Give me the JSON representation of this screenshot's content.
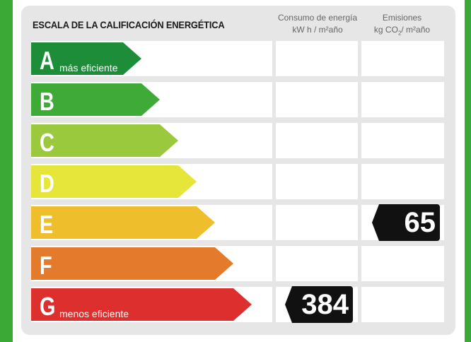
{
  "title": "ESCALA DE LA CALIFICACIÓN ENERGÉTICA",
  "columns": {
    "consumo": {
      "line1": "Consumo de energía",
      "line2": "kW h / m²año"
    },
    "emisiones": {
      "line1": "Emisiones",
      "line2a": "kg CO",
      "line2sub": "2",
      "line2b": "/ m²año"
    }
  },
  "ratings": [
    {
      "letter": "A",
      "sublabel": "más eficiente",
      "color": "#1e8d3a"
    },
    {
      "letter": "B",
      "sublabel": "",
      "color": "#3faa38"
    },
    {
      "letter": "C",
      "sublabel": "",
      "color": "#9bc93d"
    },
    {
      "letter": "D",
      "sublabel": "",
      "color": "#e6e53a"
    },
    {
      "letter": "E",
      "sublabel": "",
      "color": "#efbe2c"
    },
    {
      "letter": "F",
      "sublabel": "",
      "color": "#e47a2c"
    },
    {
      "letter": "G",
      "sublabel": "menos eficiente",
      "color": "#dd2f2e"
    }
  ],
  "consumo_value": {
    "rating": "G",
    "value": "384"
  },
  "emisiones_value": {
    "rating": "E",
    "value": "65"
  }
}
